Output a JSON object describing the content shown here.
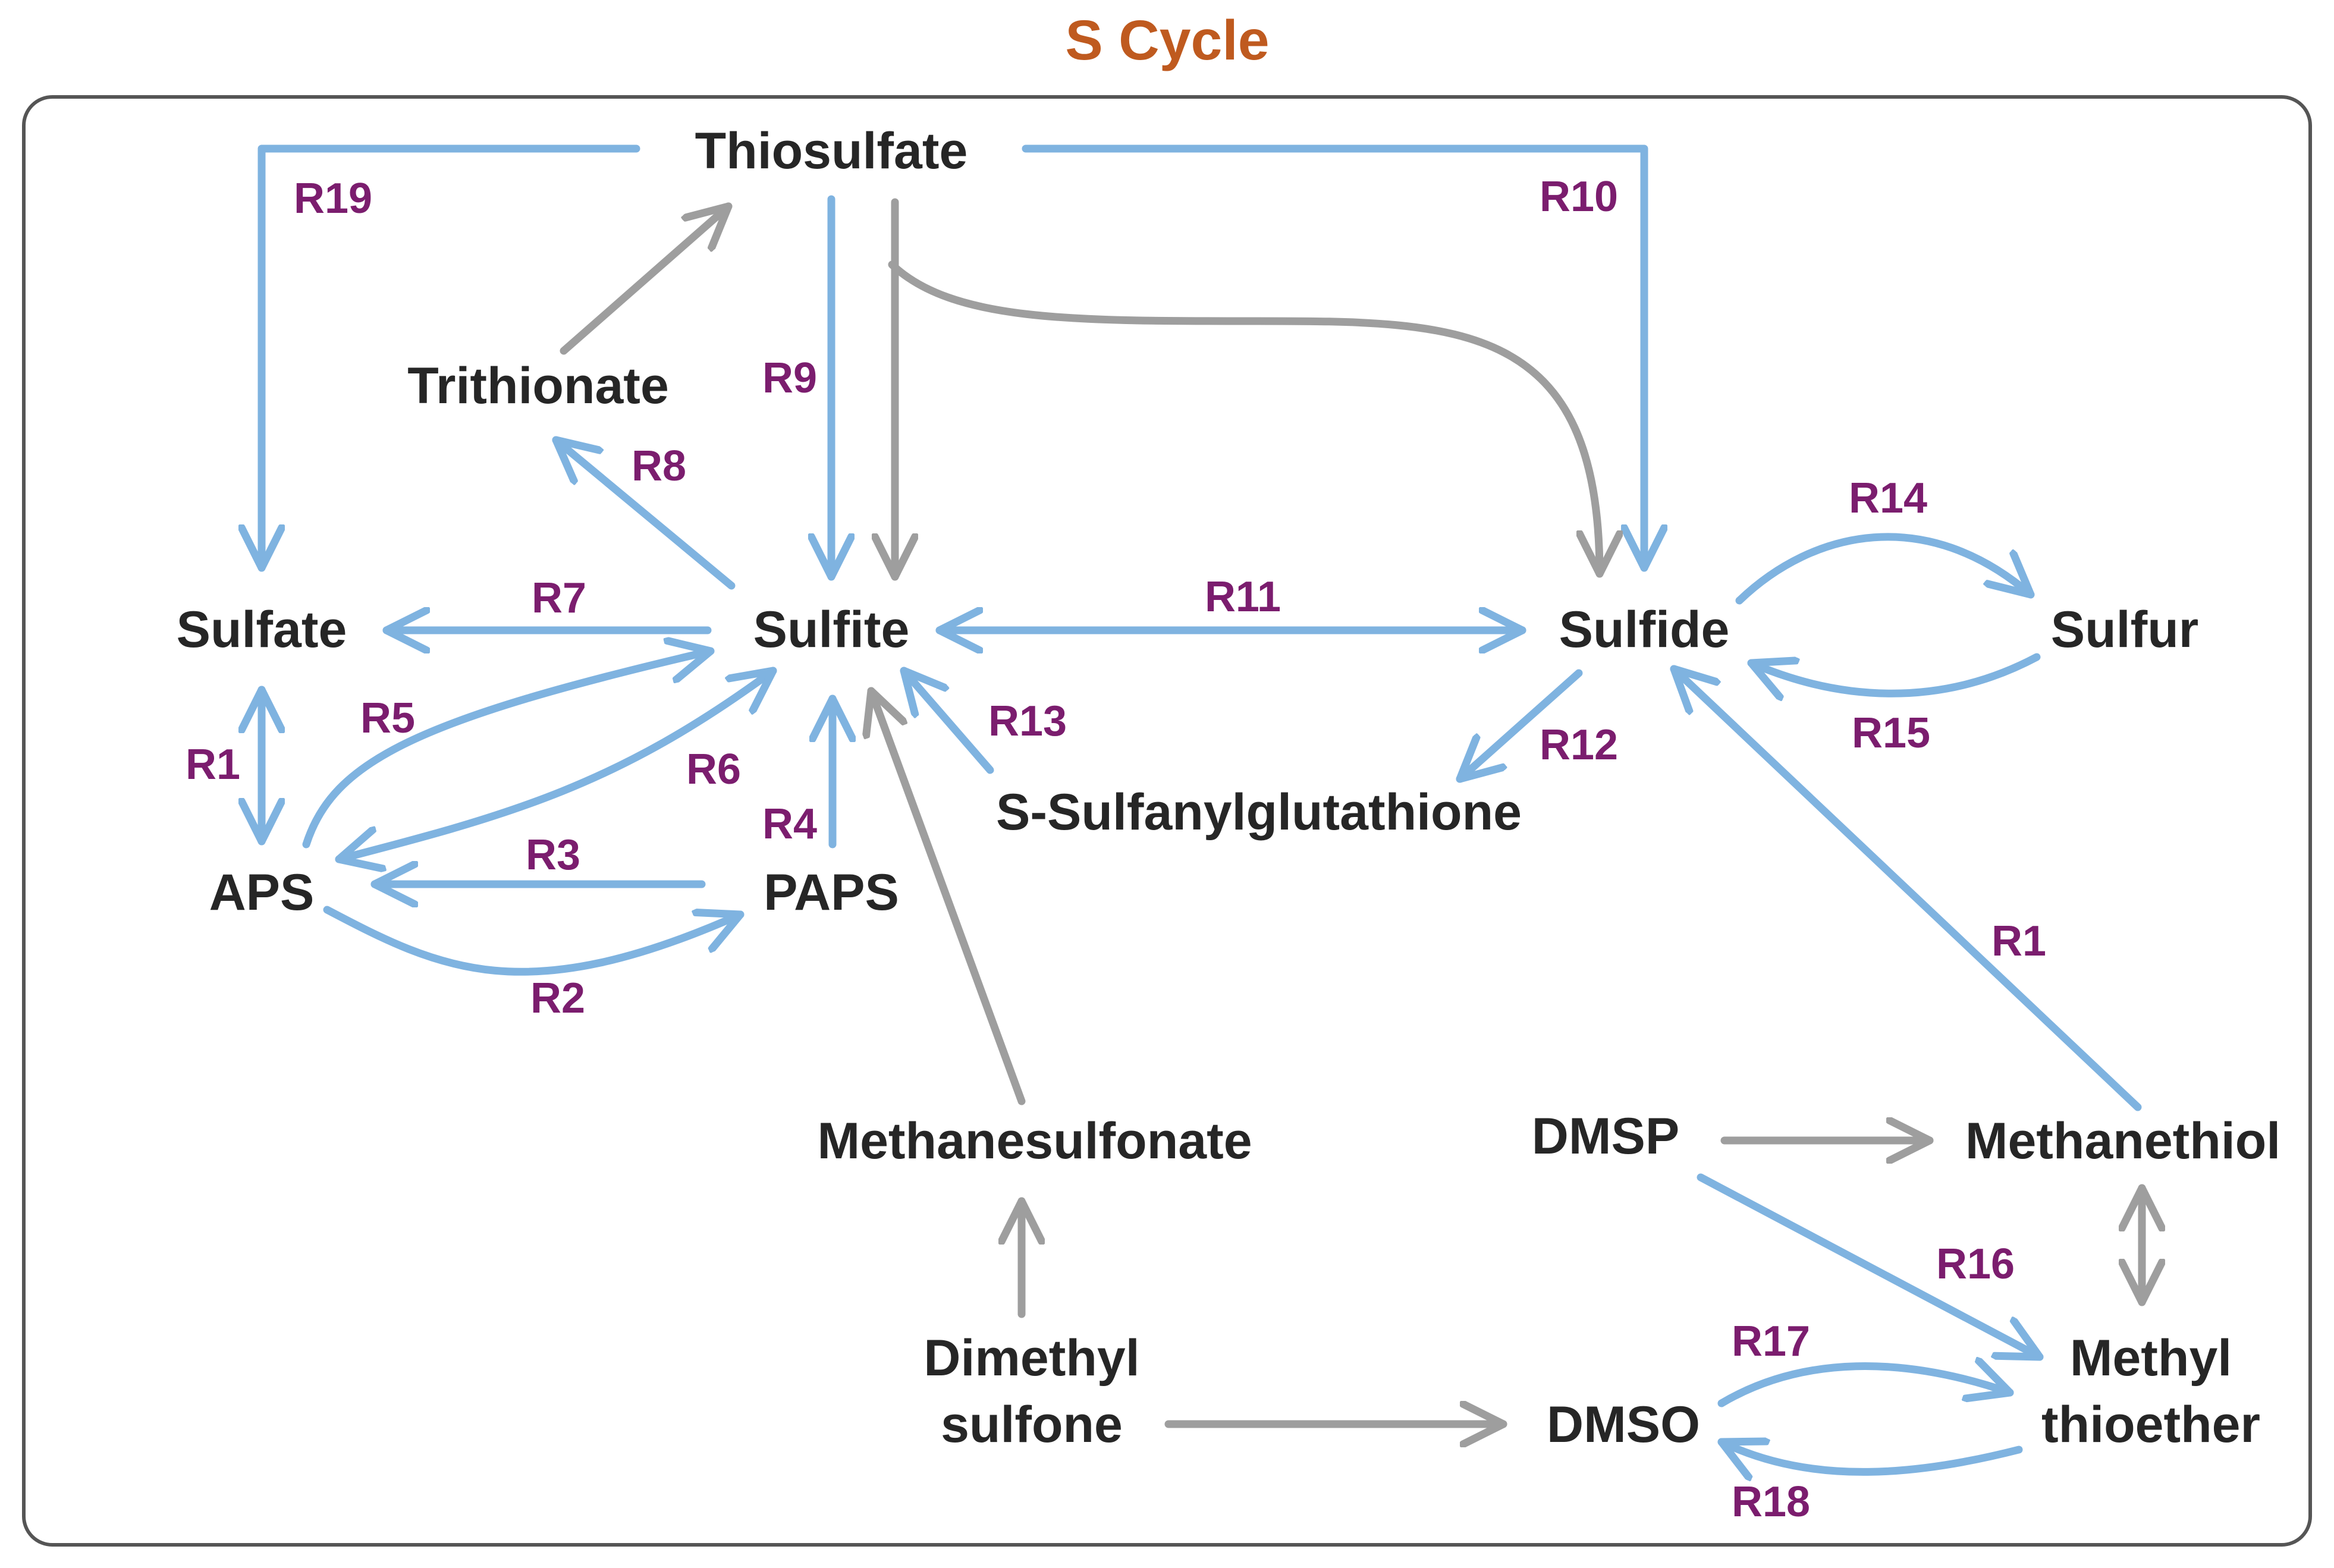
{
  "title": "S Cycle",
  "colors": {
    "title": "#bf5a1f",
    "node_text": "#262626",
    "reaction_label": "#7b1d6e",
    "blue_arrow": "#7fb3e0",
    "gray_arrow": "#9e9e9e",
    "frame": "#555555"
  },
  "nodes": {
    "thiosulfate": "Thiosulfate",
    "trithionate": "Trithionate",
    "sulfate": "Sulfate",
    "sulfite": "Sulfite",
    "sulfide": "Sulfide",
    "sulfur": "Sulfur",
    "aps": "APS",
    "paps": "PAPS",
    "s_sulfanylglutathione": "S-Sulfanylglutathione",
    "methanesulfonate": "Methanesulfonate",
    "dmsp": "DMSP",
    "methanethiol": "Methanethiol",
    "dimethyl_sulfone_line1": "Dimethyl",
    "dimethyl_sulfone_line2": "sulfone",
    "dmso": "DMSO",
    "methyl_thioether_line1": "Methyl",
    "methyl_thioether_line2": "thioether"
  },
  "reactions": {
    "r19": "R19",
    "r10": "R10",
    "r9": "R9",
    "r8": "R8",
    "r7": "R7",
    "r11": "R11",
    "r14": "R14",
    "r15": "R15",
    "r1_left": "R1",
    "r5": "R5",
    "r6": "R6",
    "r13": "R13",
    "r12": "R12",
    "r4": "R4",
    "r3": "R3",
    "r2": "R2",
    "r1_right": "R1",
    "r16": "R16",
    "r17": "R17",
    "r18": "R18"
  }
}
